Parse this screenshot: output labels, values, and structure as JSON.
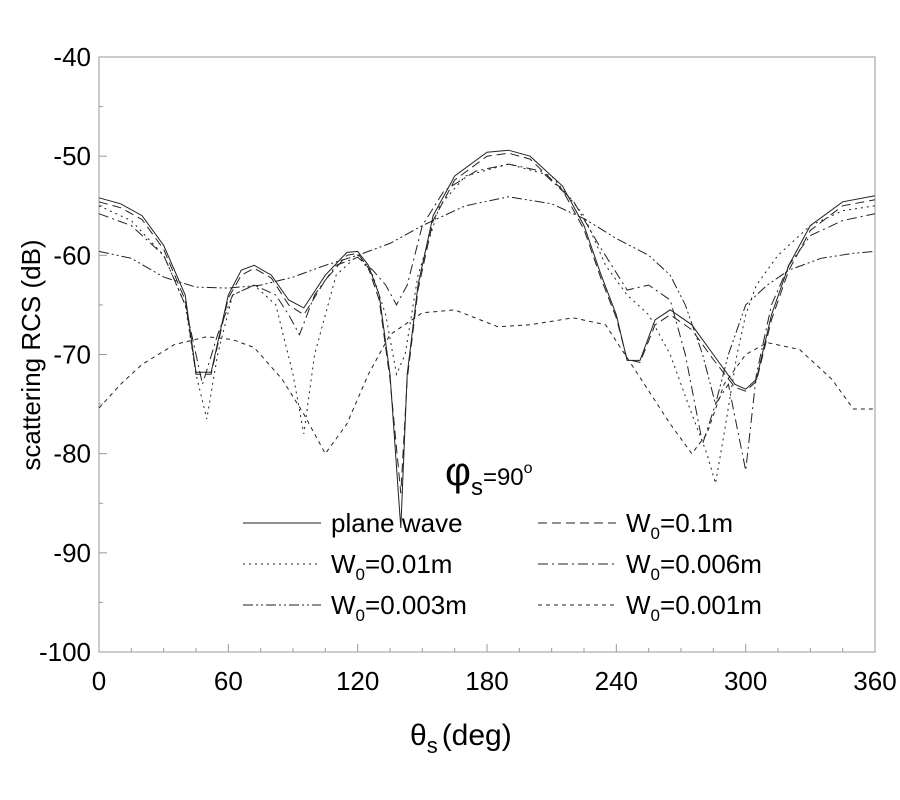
{
  "chart_data": {
    "type": "line",
    "title": "",
    "annotation": {
      "symbol": "φ",
      "sub": "s",
      "text": "=90",
      "sup": "o"
    },
    "xlabel": {
      "symbol": "θ",
      "sub": "s",
      "text": "(deg)"
    },
    "ylabel": "scattering RCS (dB)",
    "xlim": [
      0,
      360
    ],
    "ylim": [
      -100,
      -40
    ],
    "xticks": [
      "0",
      "60",
      "120",
      "180",
      "240",
      "300",
      "360"
    ],
    "yticks": [
      "-40",
      "-50",
      "-60",
      "-70",
      "-80",
      "-90",
      "-100"
    ],
    "grid": false,
    "legend_position": "bottom-center",
    "series": [
      {
        "name": "plane wave",
        "label_main": "plane wave",
        "label_sub": "",
        "label_rest": "",
        "dash": "solid",
        "x": [
          0,
          10,
          20,
          30,
          40,
          45,
          52,
          60,
          66,
          72,
          80,
          88,
          95,
          105,
          115,
          120,
          125,
          130,
          135,
          140,
          143,
          148,
          155,
          165,
          180,
          190,
          200,
          215,
          225,
          233,
          240,
          245,
          251,
          258,
          265,
          275,
          285,
          295,
          300,
          305,
          312,
          320,
          330,
          345,
          360
        ],
        "y": [
          -54.2,
          -54.8,
          -56,
          -59,
          -64,
          -71.8,
          -71.8,
          -64,
          -61.5,
          -61,
          -62,
          -64.5,
          -65.3,
          -62,
          -59.7,
          -59.6,
          -61,
          -64,
          -72,
          -87.5,
          -72,
          -63,
          -56,
          -52,
          -49.6,
          -49.4,
          -50,
          -53,
          -57,
          -62,
          -66,
          -70.6,
          -70.6,
          -66.5,
          -65.5,
          -67,
          -70,
          -73,
          -73.5,
          -72.5,
          -66,
          -61,
          -57,
          -54.6,
          -54
        ]
      },
      {
        "name": "W0=0.1m",
        "label_main": "W",
        "label_sub": "0",
        "label_rest": "=0.1m",
        "dash": "dashed",
        "x": [
          0,
          10,
          20,
          30,
          40,
          45,
          52,
          60,
          66,
          72,
          80,
          88,
          95,
          105,
          115,
          120,
          125,
          130,
          135,
          140,
          143,
          148,
          155,
          165,
          180,
          190,
          200,
          215,
          225,
          233,
          240,
          245,
          251,
          258,
          265,
          275,
          285,
          295,
          300,
          305,
          312,
          320,
          330,
          345,
          360
        ],
        "y": [
          -54.6,
          -55.2,
          -56.4,
          -59.4,
          -64.5,
          -72,
          -72,
          -64.3,
          -62,
          -61.3,
          -62.3,
          -65,
          -66,
          -62.5,
          -60,
          -59.8,
          -61.3,
          -64.5,
          -72.5,
          -84,
          -72.5,
          -63.5,
          -56.5,
          -52.4,
          -50,
          -49.7,
          -50.3,
          -53.4,
          -57.4,
          -62.4,
          -66.3,
          -70.5,
          -70.8,
          -67,
          -66,
          -67.5,
          -70.5,
          -73.3,
          -73.7,
          -72.7,
          -66.5,
          -61.5,
          -57.5,
          -55,
          -54.4
        ]
      },
      {
        "name": "W0=0.01m",
        "label_main": "W",
        "label_sub": "0",
        "label_rest": "=0.01m",
        "dash": "dotted",
        "x": [
          0,
          15,
          30,
          40,
          45,
          50,
          55,
          62,
          72,
          82,
          90,
          95,
          100,
          110,
          120,
          127,
          133,
          138,
          142,
          148,
          158,
          170,
          190,
          210,
          225,
          235,
          245,
          255,
          265,
          275,
          282,
          286,
          290,
          296,
          300,
          305,
          315,
          330,
          345,
          360
        ],
        "y": [
          -55,
          -56.5,
          -60,
          -65,
          -72,
          -76.5,
          -70,
          -64,
          -63,
          -65,
          -72,
          -78,
          -70,
          -62,
          -60,
          -62,
          -66,
          -72,
          -70,
          -62,
          -55,
          -52,
          -50.8,
          -52,
          -56,
          -61,
          -64,
          -66,
          -70,
          -76,
          -80,
          -83,
          -78,
          -70,
          -66,
          -63,
          -60,
          -57,
          -55.5,
          -55
        ]
      },
      {
        "name": "W0=0.006m",
        "label_main": "W",
        "label_sub": "0",
        "label_rest": "=0.006m",
        "dash": "dashdot",
        "x": [
          0,
          15,
          30,
          40,
          48,
          55,
          62,
          72,
          82,
          88,
          93,
          100,
          110,
          120,
          127,
          133,
          138,
          143,
          150,
          160,
          175,
          190,
          205,
          220,
          232,
          245,
          255,
          265,
          272,
          280,
          286,
          292,
          300,
          305,
          312,
          320,
          330,
          345,
          360
        ],
        "y": [
          -55.8,
          -57,
          -60,
          -65,
          -73,
          -68,
          -64,
          -63,
          -64,
          -66,
          -68,
          -64,
          -61,
          -60.2,
          -61.5,
          -63,
          -65,
          -63,
          -57,
          -53.5,
          -51.5,
          -50.8,
          -51.5,
          -54.5,
          -59,
          -63.5,
          -63,
          -64.5,
          -70,
          -79,
          -75,
          -73,
          -81.7,
          -72,
          -65,
          -61,
          -58,
          -56.5,
          -55.8
        ]
      },
      {
        "name": "W0=0.003m",
        "label_main": "W",
        "label_sub": "0",
        "label_rest": "=0.003m",
        "dash": "dashdotdot",
        "x": [
          0,
          15,
          30,
          45,
          60,
          75,
          90,
          105,
          120,
          135,
          150,
          170,
          190,
          210,
          225,
          240,
          255,
          265,
          272,
          280,
          286,
          292,
          300,
          310,
          320,
          335,
          350,
          360
        ],
        "y": [
          -59.6,
          -60.3,
          -62.2,
          -63.2,
          -63.3,
          -63,
          -62.2,
          -61,
          -60,
          -58.8,
          -57,
          -55,
          -54.1,
          -54.8,
          -56.3,
          -58.3,
          -60,
          -62,
          -65,
          -70,
          -75,
          -70,
          -65,
          -63,
          -61.5,
          -60.3,
          -59.8,
          -59.6
        ]
      },
      {
        "name": "W0=0.001m",
        "label_main": "W",
        "label_sub": "0",
        "label_rest": "=0.001m",
        "dash": "shortdash",
        "x": [
          0,
          10,
          20,
          35,
          50,
          62,
          72,
          85,
          95,
          105,
          115,
          125,
          135,
          150,
          165,
          185,
          200,
          220,
          235,
          250,
          265,
          275,
          282,
          290,
          300,
          310,
          325,
          340,
          350,
          360
        ],
        "y": [
          -75.4,
          -73,
          -71,
          -69,
          -68.2,
          -68.5,
          -69.3,
          -72.5,
          -76,
          -80,
          -77,
          -72,
          -68,
          -65.8,
          -65.5,
          -67.2,
          -67,
          -66.3,
          -67,
          -72,
          -77,
          -80,
          -78,
          -73,
          -70,
          -68.8,
          -69.5,
          -72.5,
          -75.5,
          -75.5
        ]
      }
    ]
  }
}
